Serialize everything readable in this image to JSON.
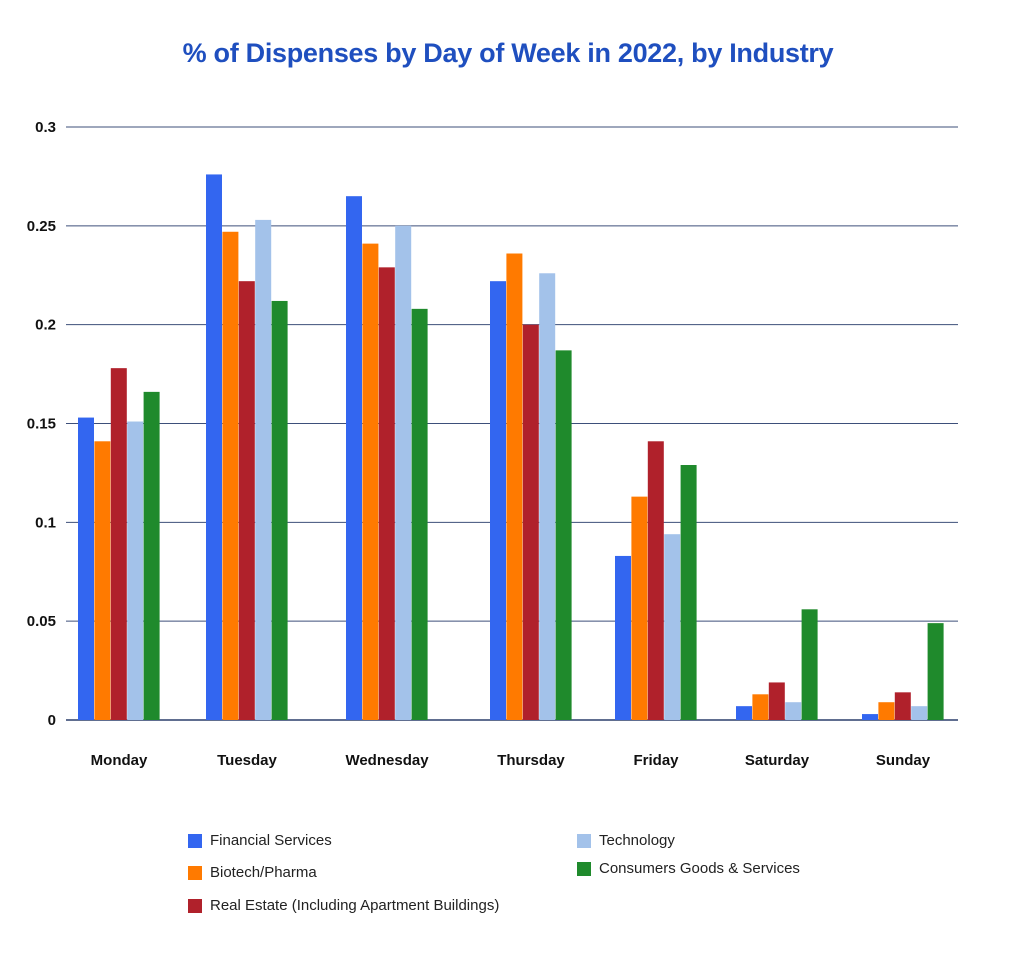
{
  "chart_data": {
    "type": "bar",
    "title": "% of Dispenses by Day of Week in 2022, by Industry",
    "categories": [
      "Monday",
      "Tuesday",
      "Wednesday",
      "Thursday",
      "Friday",
      "Saturday",
      "Sunday"
    ],
    "y_ticks": [
      "0",
      "0.05",
      "0.1",
      "0.15",
      "0.2",
      "0.25",
      "0.3"
    ],
    "ylim": [
      0,
      0.3
    ],
    "grid": true,
    "legend_position": "bottom",
    "series": [
      {
        "name": "Financial Services",
        "color": "#3366f0",
        "values": [
          0.153,
          0.276,
          0.265,
          0.222,
          0.083,
          0.007,
          0.003
        ]
      },
      {
        "name": "Biotech/Pharma",
        "color": "#ff7a00",
        "values": [
          0.141,
          0.247,
          0.241,
          0.236,
          0.113,
          0.013,
          0.009
        ]
      },
      {
        "name": "Real Estate (Including Apartment Buildings)",
        "color": "#b0212b",
        "values": [
          0.178,
          0.222,
          0.229,
          0.2,
          0.141,
          0.019,
          0.014
        ]
      },
      {
        "name": "Technology",
        "color": "#a3c2ea",
        "values": [
          0.151,
          0.253,
          0.25,
          0.226,
          0.094,
          0.009,
          0.007
        ]
      },
      {
        "name": "Consumers Goods & Services",
        "color": "#1f8a2c",
        "values": [
          0.166,
          0.212,
          0.208,
          0.187,
          0.129,
          0.056,
          0.049
        ]
      }
    ]
  }
}
